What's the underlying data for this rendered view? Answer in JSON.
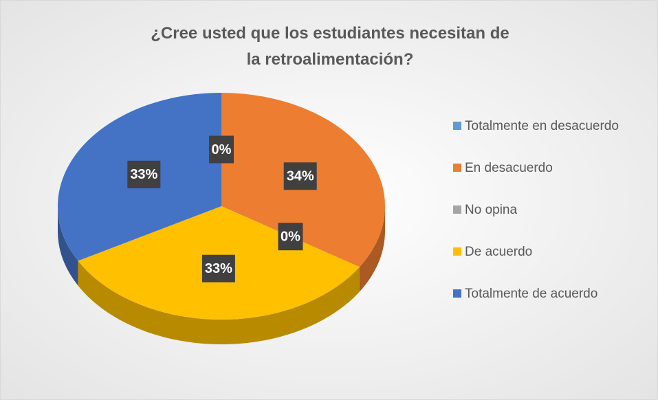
{
  "chart_data": {
    "type": "pie",
    "title": "¿Cree usted que los estudiantes necesitan de la retroalimentación?",
    "categories": [
      "Totalmente en desacuerdo",
      "En desacuerdo",
      "No opina",
      "De acuerdo",
      "Totalmente de acuerdo"
    ],
    "values": [
      0,
      34,
      0,
      33,
      33
    ],
    "value_labels": [
      "0%",
      "34%",
      "0%",
      "33%",
      "33%"
    ],
    "colors": [
      "#5b9bd5",
      "#ed7d31",
      "#a5a5a5",
      "#ffc000",
      "#4472c4"
    ],
    "legend": "right"
  }
}
